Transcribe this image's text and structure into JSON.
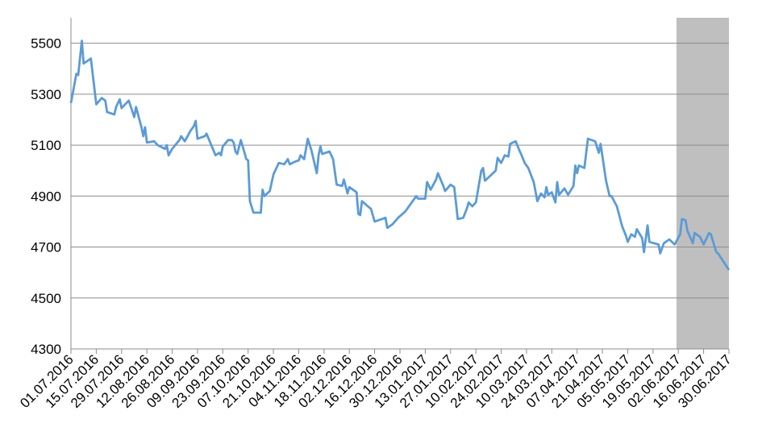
{
  "chart_data": {
    "type": "line",
    "color": "#5b9bd5",
    "grid": true,
    "ylim": [
      4300,
      5600
    ],
    "yticks": [
      4300,
      4500,
      4700,
      4900,
      5100,
      5300,
      5500
    ],
    "xlim": [
      "01.07.2016",
      "30.06.2017"
    ],
    "xticks": [
      "01.07.2016",
      "15.07.2016",
      "29.07.2016",
      "12.08.2016",
      "26.08.2016",
      "09.09.2016",
      "23.09.2016",
      "07.10.2016",
      "21.10.2016",
      "04.11.2016",
      "18.11.2016",
      "02.12.2016",
      "16.12.2016",
      "30.12.2016",
      "13.01.2017",
      "27.01.2017",
      "10.02.2017",
      "24.02.2017",
      "10.03.2017",
      "24.03.2017",
      "07.04.2017",
      "21.04.2017",
      "05.05.2017",
      "19.05.2017",
      "02.06.2017",
      "16.06.2017",
      "30.06.2017"
    ],
    "shade": {
      "range": [
        "01.06.2017",
        "30.06.2017"
      ],
      "color": "#bfbfbf"
    },
    "x": [
      "01.07.2016",
      "04.07.2016",
      "05.07.2016",
      "07.07.2016",
      "08.07.2016",
      "12.07.2016",
      "15.07.2016",
      "18.07.2016",
      "20.07.2016",
      "21.07.2016",
      "25.07.2016",
      "26.07.2016",
      "28.07.2016",
      "29.07.2016",
      "02.08.2016",
      "05.08.2016",
      "06.08.2016",
      "09.08.2016",
      "10.08.2016",
      "11.08.2016",
      "12.08.2016",
      "16.08.2016",
      "18.08.2016",
      "22.08.2016",
      "23.08.2016",
      "24.08.2016",
      "26.08.2016",
      "30.08.2016",
      "31.08.2016",
      "02.09.2016",
      "05.09.2016",
      "07.09.2016",
      "08.09.2016",
      "09.09.2016",
      "13.09.2016",
      "14.09.2016",
      "19.09.2016",
      "21.09.2016",
      "22.09.2016",
      "23.09.2016",
      "26.09.2016",
      "28.09.2016",
      "29.09.2016",
      "30.09.2016",
      "01.10.2016",
      "03.10.2016",
      "06.10.2016",
      "07.10.2016",
      "08.10.2016",
      "10.10.2016",
      "14.10.2016",
      "15.10.2016",
      "16.10.2016",
      "19.10.2016",
      "21.10.2016",
      "24.10.2016",
      "27.10.2016",
      "29.10.2016",
      "30.10.2016",
      "02.11.2016",
      "04.11.2016",
      "05.11.2016",
      "07.11.2016",
      "09.11.2016",
      "11.11.2016",
      "14.11.2016",
      "15.11.2016",
      "16.11.2016",
      "17.11.2016",
      "21.11.2016",
      "23.11.2016",
      "25.11.2016",
      "28.11.2016",
      "29.11.2016",
      "01.12.2016",
      "02.12.2016",
      "06.12.2016",
      "07.12.2016",
      "08.12.2016",
      "09.12.2016",
      "13.12.2016",
      "14.12.2016",
      "16.12.2016",
      "20.12.2016",
      "22.12.2016",
      "23.12.2016",
      "26.12.2016",
      "29.12.2016",
      "02.01.2017",
      "05.01.2017",
      "08.01.2017",
      "09.01.2017",
      "12.01.2017",
      "13.01.2017",
      "14.01.2017",
      "16.01.2017",
      "19.01.2017",
      "20.01.2017",
      "23.01.2017",
      "24.01.2017",
      "27.01.2017",
      "29.01.2017",
      "31.01.2017",
      "03.02.2017",
      "05.02.2017",
      "06.02.2017",
      "08.02.2017",
      "10.02.2017",
      "13.02.2017",
      "14.02.2017",
      "15.02.2017",
      "18.02.2017",
      "21.02.2017",
      "22.02.2017",
      "24.02.2017",
      "26.02.2017",
      "28.02.2017",
      "01.03.2017",
      "04.03.2017",
      "06.03.2017",
      "07.03.2017",
      "09.03.2017",
      "11.03.2017",
      "14.03.2017",
      "16.03.2017",
      "18.03.2017",
      "20.03.2017",
      "21.03.2017",
      "22.03.2017",
      "24.03.2017",
      "26.03.2017",
      "27.03.2017",
      "28.03.2017",
      "31.03.2017",
      "02.04.2017",
      "05.04.2017",
      "06.04.2017",
      "07.04.2017",
      "08.04.2017",
      "11.04.2017",
      "13.04.2017",
      "17.04.2017",
      "19.04.2017",
      "20.04.2017",
      "23.04.2017",
      "25.04.2017",
      "26.04.2017",
      "29.04.2017",
      "02.05.2017",
      "04.05.2017",
      "05.05.2017",
      "07.05.2017",
      "09.05.2017",
      "10.05.2017",
      "13.05.2017",
      "14.05.2017",
      "16.05.2017",
      "17.05.2017",
      "22.05.2017",
      "23.05.2017",
      "25.05.2017",
      "28.05.2017",
      "31.05.2017",
      "03.06.2017",
      "04.06.2017",
      "06.06.2017",
      "07.06.2017",
      "10.06.2017",
      "11.06.2017",
      "14.06.2017",
      "16.06.2017",
      "19.06.2017",
      "20.06.2017",
      "23.06.2017",
      "24.06.2017",
      "30.06.2017"
    ],
    "values": [
      5265,
      5380,
      5375,
      5510,
      5420,
      5440,
      5260,
      5285,
      5275,
      5230,
      5220,
      5250,
      5280,
      5245,
      5275,
      5210,
      5250,
      5170,
      5135,
      5170,
      5110,
      5115,
      5100,
      5085,
      5100,
      5060,
      5085,
      5120,
      5135,
      5115,
      5155,
      5175,
      5195,
      5125,
      5135,
      5145,
      5060,
      5070,
      5060,
      5095,
      5120,
      5120,
      5110,
      5075,
      5065,
      5120,
      5045,
      5040,
      4880,
      4835,
      4835,
      4925,
      4900,
      4920,
      4985,
      5030,
      5025,
      5045,
      5025,
      5035,
      5040,
      5060,
      5045,
      5125,
      5080,
      4990,
      5060,
      5095,
      5065,
      5075,
      5045,
      4945,
      4940,
      4965,
      4910,
      4935,
      4915,
      4830,
      4825,
      4880,
      4855,
      4850,
      4800,
      4810,
      4815,
      4775,
      4790,
      4815,
      4840,
      4870,
      4900,
      4890,
      4890,
      4890,
      4955,
      4925,
      4965,
      4990,
      4940,
      4920,
      4945,
      4935,
      4810,
      4815,
      4850,
      4875,
      4860,
      4875,
      5000,
      5010,
      4960,
      4980,
      5000,
      5050,
      5030,
      5060,
      5055,
      5105,
      5115,
      5080,
      5065,
      5030,
      5010,
      4955,
      4880,
      4910,
      4895,
      4935,
      4905,
      4915,
      4875,
      4955,
      4905,
      4930,
      4905,
      4940,
      5020,
      4990,
      5020,
      5010,
      5125,
      5115,
      5070,
      5105,
      4960,
      4900,
      4900,
      4860,
      4780,
      4745,
      4720,
      4750,
      4740,
      4770,
      4735,
      4680,
      4785,
      4720,
      4710,
      4675,
      4715,
      4730,
      4710,
      4750,
      4810,
      4805,
      4765,
      4715,
      4755,
      4740,
      4710,
      4755,
      4750,
      4680,
      4675,
      4610
    ]
  }
}
